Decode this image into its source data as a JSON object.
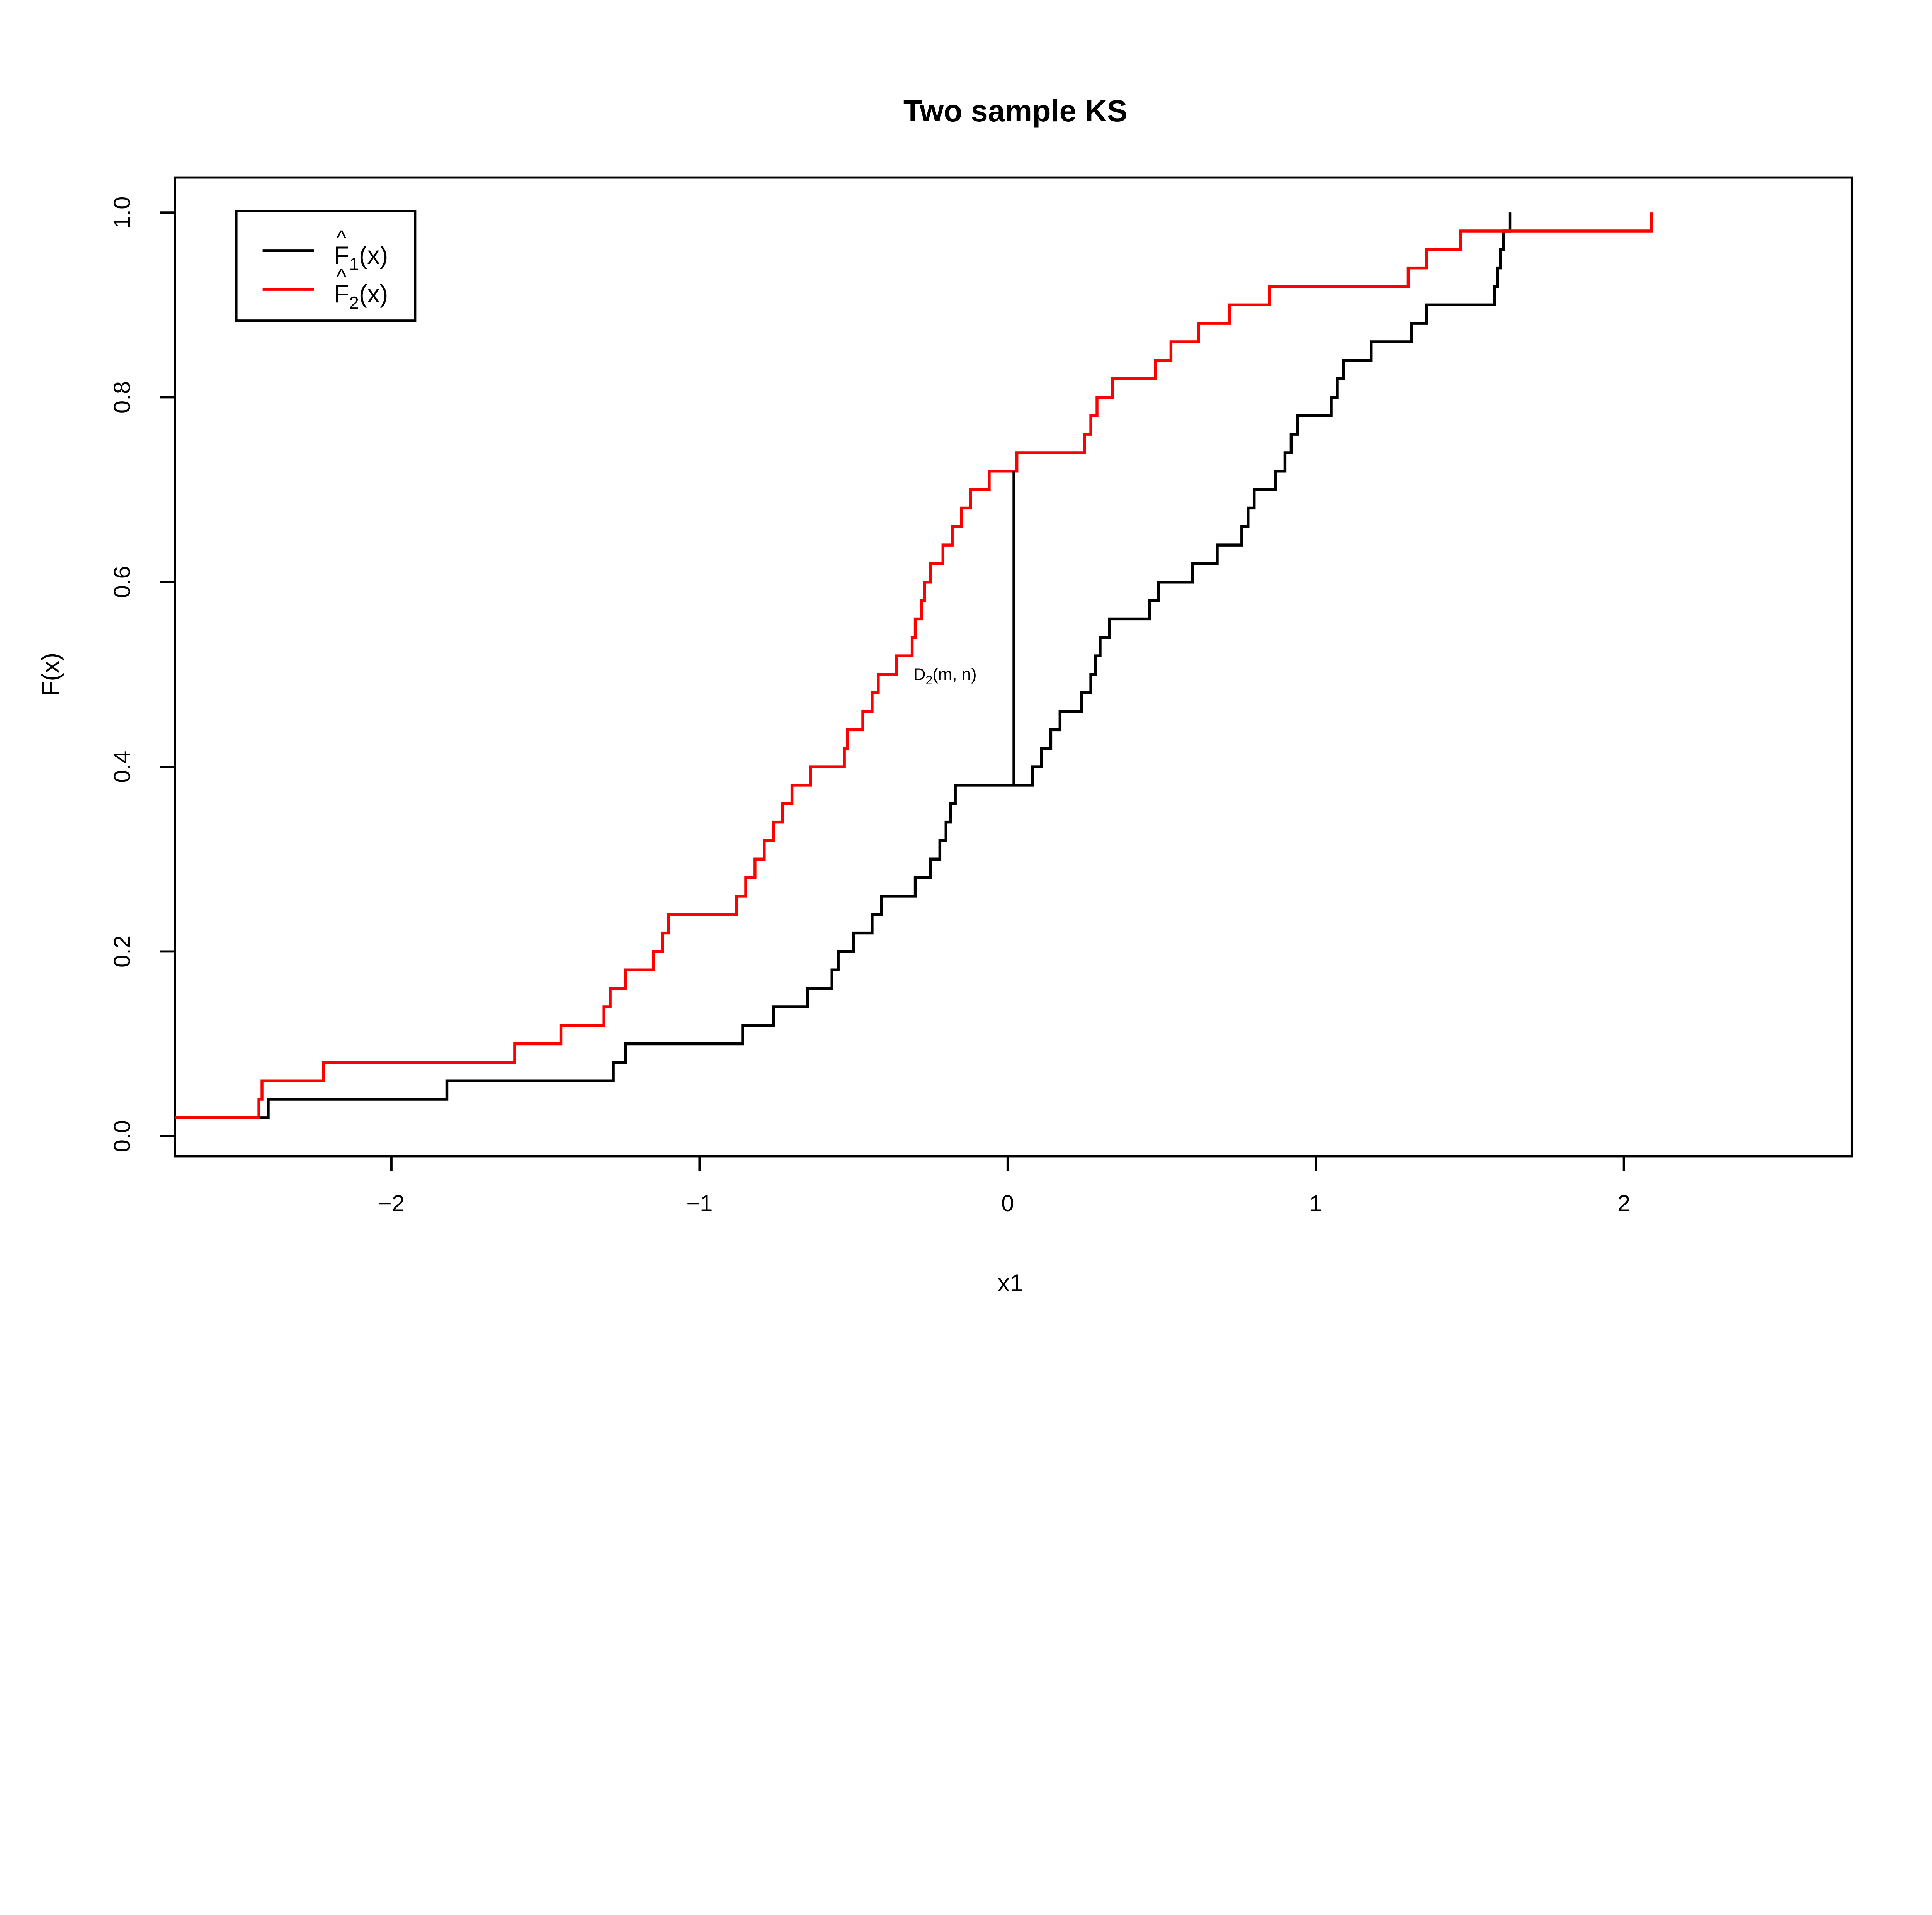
{
  "title": "Two sample KS",
  "background_color": "#FFFFFF",
  "chart_data": {
    "type": "line",
    "style": "ecdf-step",
    "title": "Two sample KS",
    "xlabel": "x1",
    "ylabel": "F(x)",
    "xlim": [
      -2.7,
      2.74
    ],
    "ylim": [
      0.0,
      1.0
    ],
    "grid": "off",
    "legend_position": "top-left",
    "x_ticks": [
      {
        "v": -2,
        "label": "−2"
      },
      {
        "v": -1,
        "label": "−1"
      },
      {
        "v": 0,
        "label": "0"
      },
      {
        "v": 1,
        "label": "1"
      },
      {
        "v": 2,
        "label": "2"
      }
    ],
    "y_ticks": [
      {
        "v": 0.0,
        "label": "0.0"
      },
      {
        "v": 0.2,
        "label": "0.2"
      },
      {
        "v": 0.4,
        "label": "0.4"
      },
      {
        "v": 0.6,
        "label": "0.6"
      },
      {
        "v": 0.8,
        "label": "0.8"
      },
      {
        "v": 1.0,
        "label": "1.0"
      }
    ],
    "legend": {
      "entries": [
        {
          "hat": "^",
          "base": "F",
          "sub": "1",
          "args": "(x)",
          "color": "#000000"
        },
        {
          "hat": "^",
          "base": "F",
          "sub": "2",
          "args": "(x)",
          "color": "#FF0000"
        }
      ]
    },
    "series": [
      {
        "name": "F̂₁(x)",
        "color": "#000000",
        "points": [
          [
            -2.75,
            0.02
          ],
          [
            -2.4,
            0.04
          ],
          [
            -1.82,
            0.06
          ],
          [
            -1.28,
            0.08
          ],
          [
            -1.24,
            0.1
          ],
          [
            -0.86,
            0.12
          ],
          [
            -0.76,
            0.14
          ],
          [
            -0.65,
            0.16
          ],
          [
            -0.57,
            0.18
          ],
          [
            -0.55,
            0.2
          ],
          [
            -0.5,
            0.22
          ],
          [
            -0.44,
            0.24
          ],
          [
            -0.41,
            0.26
          ],
          [
            -0.3,
            0.28
          ],
          [
            -0.25,
            0.3
          ],
          [
            -0.22,
            0.32
          ],
          [
            -0.2,
            0.34
          ],
          [
            -0.185,
            0.36
          ],
          [
            -0.17,
            0.38
          ],
          [
            0.08,
            0.4
          ],
          [
            0.11,
            0.42
          ],
          [
            0.14,
            0.44
          ],
          [
            0.17,
            0.46
          ],
          [
            0.24,
            0.48
          ],
          [
            0.27,
            0.5
          ],
          [
            0.285,
            0.52
          ],
          [
            0.3,
            0.54
          ],
          [
            0.33,
            0.56
          ],
          [
            0.46,
            0.58
          ],
          [
            0.49,
            0.6
          ],
          [
            0.6,
            0.62
          ],
          [
            0.68,
            0.64
          ],
          [
            0.76,
            0.66
          ],
          [
            0.78,
            0.68
          ],
          [
            0.8,
            0.7
          ],
          [
            0.87,
            0.72
          ],
          [
            0.9,
            0.74
          ],
          [
            0.92,
            0.76
          ],
          [
            0.94,
            0.78
          ],
          [
            1.05,
            0.8
          ],
          [
            1.07,
            0.82
          ],
          [
            1.09,
            0.84
          ],
          [
            1.18,
            0.86
          ],
          [
            1.31,
            0.88
          ],
          [
            1.36,
            0.9
          ],
          [
            1.58,
            0.92
          ],
          [
            1.59,
            0.94
          ],
          [
            1.6,
            0.96
          ],
          [
            1.61,
            0.98
          ],
          [
            1.63,
            1.0
          ]
        ]
      },
      {
        "name": "F̂₂(x)",
        "color": "#FF0000",
        "points": [
          [
            -2.77,
            0.02
          ],
          [
            -2.43,
            0.04
          ],
          [
            -2.42,
            0.06
          ],
          [
            -2.22,
            0.08
          ],
          [
            -1.6,
            0.1
          ],
          [
            -1.45,
            0.12
          ],
          [
            -1.31,
            0.14
          ],
          [
            -1.29,
            0.16
          ],
          [
            -1.24,
            0.18
          ],
          [
            -1.15,
            0.2
          ],
          [
            -1.12,
            0.22
          ],
          [
            -1.1,
            0.24
          ],
          [
            -0.88,
            0.26
          ],
          [
            -0.85,
            0.28
          ],
          [
            -0.82,
            0.3
          ],
          [
            -0.79,
            0.32
          ],
          [
            -0.76,
            0.34
          ],
          [
            -0.73,
            0.36
          ],
          [
            -0.7,
            0.38
          ],
          [
            -0.64,
            0.4
          ],
          [
            -0.53,
            0.42
          ],
          [
            -0.52,
            0.44
          ],
          [
            -0.47,
            0.46
          ],
          [
            -0.44,
            0.48
          ],
          [
            -0.42,
            0.5
          ],
          [
            -0.36,
            0.52
          ],
          [
            -0.31,
            0.54
          ],
          [
            -0.3,
            0.56
          ],
          [
            -0.28,
            0.58
          ],
          [
            -0.27,
            0.6
          ],
          [
            -0.25,
            0.62
          ],
          [
            -0.21,
            0.64
          ],
          [
            -0.18,
            0.66
          ],
          [
            -0.15,
            0.68
          ],
          [
            -0.12,
            0.7
          ],
          [
            -0.06,
            0.72
          ],
          [
            0.03,
            0.74
          ],
          [
            0.25,
            0.76
          ],
          [
            0.27,
            0.78
          ],
          [
            0.29,
            0.8
          ],
          [
            0.34,
            0.82
          ],
          [
            0.48,
            0.84
          ],
          [
            0.53,
            0.86
          ],
          [
            0.62,
            0.88
          ],
          [
            0.72,
            0.9
          ],
          [
            0.85,
            0.92
          ],
          [
            1.3,
            0.94
          ],
          [
            1.36,
            0.96
          ],
          [
            1.47,
            0.98
          ],
          [
            2.09,
            1.0
          ]
        ]
      }
    ],
    "annotation": {
      "base": "D",
      "sub": "2",
      "args": "(m, n)",
      "x": 0.02,
      "y1": 0.38,
      "y2": 0.72,
      "label_x": -0.1,
      "label_y": 0.5,
      "color": "#000000"
    }
  }
}
